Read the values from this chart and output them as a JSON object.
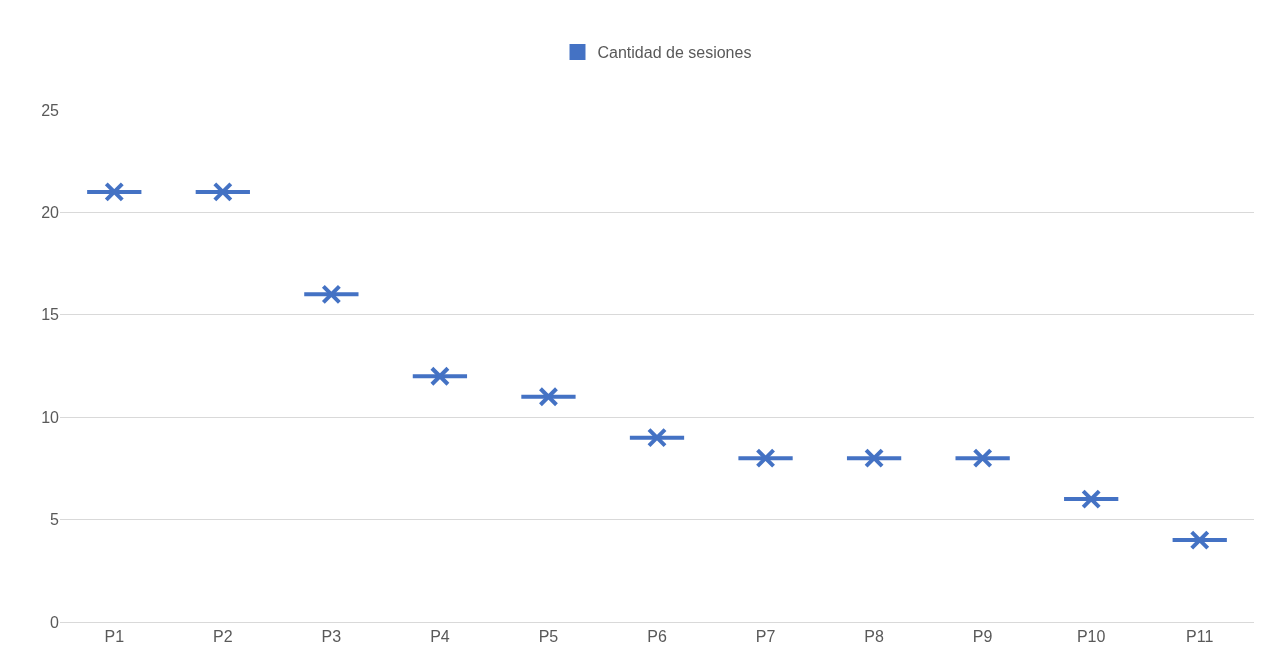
{
  "chart_data": {
    "type": "box",
    "categories": [
      "P1",
      "P2",
      "P3",
      "P4",
      "P5",
      "P6",
      "P7",
      "P8",
      "P9",
      "P10",
      "P11"
    ],
    "series": [
      {
        "name": "Cantidad de sesiones",
        "color": "#4472c4",
        "boxes": [
          {
            "low": 21,
            "q1": 21,
            "median": 21,
            "q3": 21,
            "high": 21,
            "mean": 21
          },
          {
            "low": 21,
            "q1": 21,
            "median": 21,
            "q3": 21,
            "high": 21,
            "mean": 21
          },
          {
            "low": 16,
            "q1": 16,
            "median": 16,
            "q3": 16,
            "high": 16,
            "mean": 16
          },
          {
            "low": 12,
            "q1": 12,
            "median": 12,
            "q3": 12,
            "high": 12,
            "mean": 12
          },
          {
            "low": 11,
            "q1": 11,
            "median": 11,
            "q3": 11,
            "high": 11,
            "mean": 11
          },
          {
            "low": 9,
            "q1": 9,
            "median": 9,
            "q3": 9,
            "high": 9,
            "mean": 9
          },
          {
            "low": 8,
            "q1": 8,
            "median": 8,
            "q3": 8,
            "high": 8,
            "mean": 8
          },
          {
            "low": 8,
            "q1": 8,
            "median": 8,
            "q3": 8,
            "high": 8,
            "mean": 8
          },
          {
            "low": 8,
            "q1": 8,
            "median": 8,
            "q3": 8,
            "high": 8,
            "mean": 8
          },
          {
            "low": 6,
            "q1": 6,
            "median": 6,
            "q3": 6,
            "high": 6,
            "mean": 6
          },
          {
            "low": 4,
            "q1": 4,
            "median": 4,
            "q3": 4,
            "high": 4,
            "mean": 4
          }
        ]
      }
    ],
    "ylim": [
      0,
      25
    ],
    "yticks": [
      0,
      5,
      10,
      15,
      20,
      25
    ],
    "grid": "y",
    "legend": "top",
    "marker": "cross"
  }
}
